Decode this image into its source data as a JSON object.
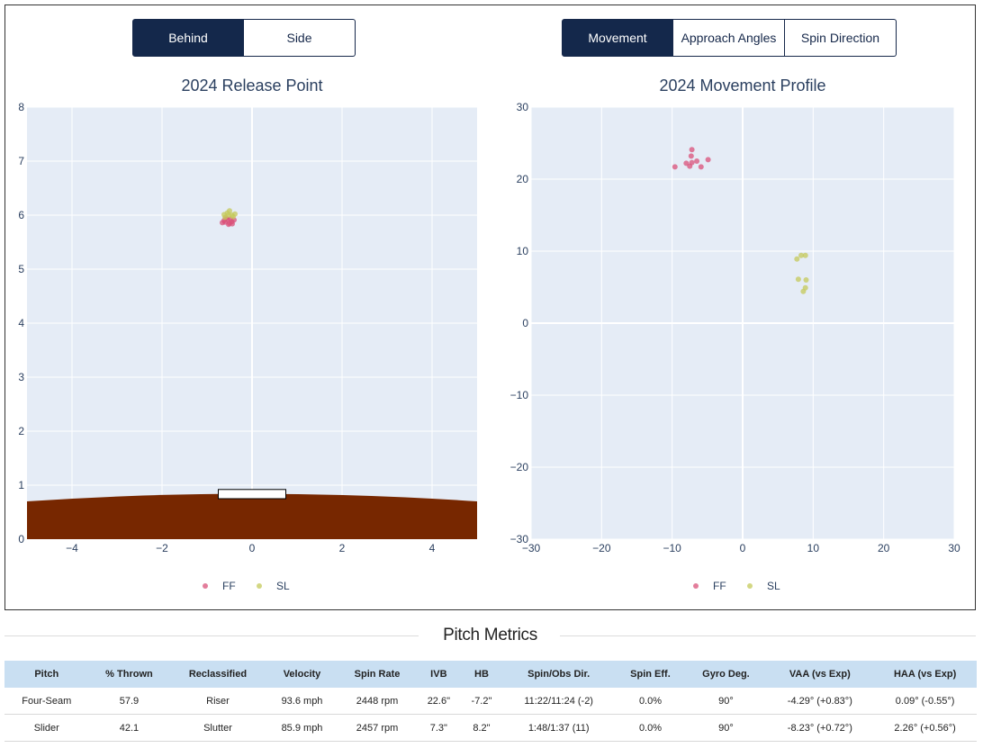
{
  "release_toggle": {
    "buttons": [
      "Behind",
      "Side"
    ],
    "active": 0
  },
  "movement_toggle": {
    "buttons": [
      "Movement",
      "Approach Angles",
      "Spin Direction"
    ],
    "active": 0
  },
  "colors": {
    "FF": "#d9527a",
    "SL": "#c4c95a",
    "dirt": "#772700",
    "plot_bg": "#e5ecf6",
    "active_btn": "#14284b",
    "header_bg": "#c9dff2"
  },
  "chart_data": [
    {
      "type": "scatter",
      "title": "2024 Release Point",
      "xlim": [
        -5,
        5
      ],
      "ylim": [
        0,
        8
      ],
      "xticks": [
        -4,
        -2,
        0,
        2,
        4
      ],
      "yticks": [
        0,
        1,
        2,
        3,
        4,
        5,
        6,
        7,
        8
      ],
      "grid": true,
      "legend_position": "bottom-center",
      "series": [
        {
          "name": "FF",
          "points": [
            [
              -0.6,
              5.87
            ],
            [
              -0.55,
              5.92
            ],
            [
              -0.5,
              5.85
            ],
            [
              -0.45,
              5.88
            ],
            [
              -0.62,
              5.9
            ],
            [
              -0.52,
              5.83
            ],
            [
              -0.4,
              5.91
            ],
            [
              -0.58,
              5.95
            ],
            [
              -0.48,
              5.93
            ],
            [
              -0.66,
              5.86
            ],
            [
              -0.44,
              5.84
            ]
          ]
        },
        {
          "name": "SL",
          "points": [
            [
              -0.62,
              6.01
            ],
            [
              -0.55,
              6.04
            ],
            [
              -0.5,
              6.08
            ],
            [
              -0.45,
              6.0
            ],
            [
              -0.38,
              6.02
            ],
            [
              -0.6,
              5.96
            ],
            [
              -0.52,
              6.0
            ],
            [
              -0.42,
              5.97
            ]
          ]
        }
      ]
    },
    {
      "type": "scatter",
      "title": "2024 Movement Profile",
      "xlim": [
        -30,
        30
      ],
      "ylim": [
        -30,
        30
      ],
      "xticks": [
        -30,
        -20,
        -10,
        0,
        10,
        20,
        30
      ],
      "yticks": [
        -30,
        -20,
        -10,
        0,
        10,
        20,
        30
      ],
      "grid": true,
      "legend_position": "bottom-center",
      "series": [
        {
          "name": "FF",
          "points": [
            [
              -9.6,
              21.7
            ],
            [
              -8,
              22.2
            ],
            [
              -7.5,
              21.8
            ],
            [
              -7.2,
              22.3
            ],
            [
              -7.3,
              23.2
            ],
            [
              -7.2,
              24.1
            ],
            [
              -6.5,
              22.5
            ],
            [
              -5.9,
              21.7
            ],
            [
              -4.9,
              22.7
            ]
          ]
        },
        {
          "name": "SL",
          "points": [
            [
              7.7,
              8.9
            ],
            [
              8.3,
              9.4
            ],
            [
              8.9,
              9.4
            ],
            [
              7.9,
              6.1
            ],
            [
              9,
              6
            ],
            [
              8.6,
              4.4
            ],
            [
              8.9,
              4.9
            ]
          ]
        }
      ]
    }
  ],
  "metrics": {
    "title": "Pitch Metrics",
    "columns": [
      "Pitch",
      "% Thrown",
      "Reclassified",
      "Velocity",
      "Spin Rate",
      "IVB",
      "HB",
      "Spin/Obs Dir.",
      "Spin Eff.",
      "Gyro Deg.",
      "VAA (vs Exp)",
      "HAA (vs Exp)"
    ],
    "rows": [
      [
        "Four-Seam",
        "57.9",
        "Riser",
        "93.6 mph",
        "2448 rpm",
        "22.6\"",
        "-7.2\"",
        "11:22/11:24 (-2)",
        "0.0%",
        "90°",
        "-4.29° (+0.83°)",
        "0.09° (-0.55°)"
      ],
      [
        "Slider",
        "42.1",
        "Slutter",
        "85.9 mph",
        "2457 rpm",
        "7.3\"",
        "8.2\"",
        "1:48/1:37 (11)",
        "0.0%",
        "90°",
        "-8.23° (+0.72°)",
        "2.26° (+0.56°)"
      ]
    ]
  }
}
